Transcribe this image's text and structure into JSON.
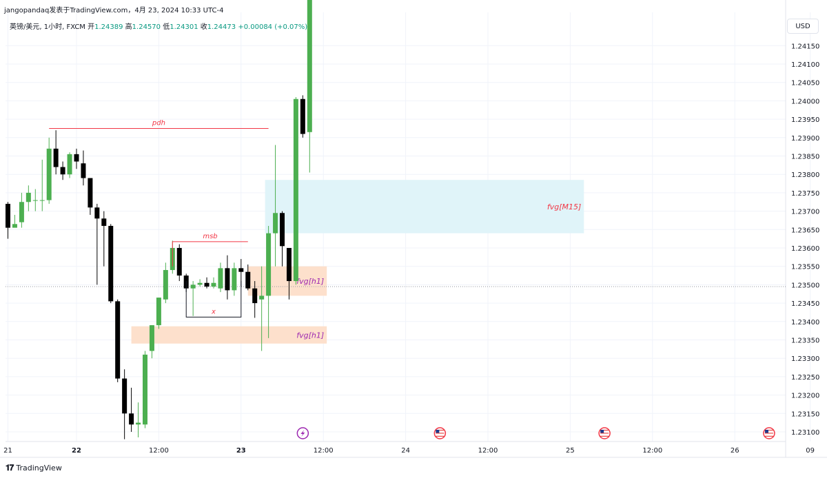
{
  "header": {
    "publisher": "jangopandaq发表于TradingView.com，4月 23, 2024 10:33 UTC-4"
  },
  "legend": {
    "symbol": "英镑/美元, 1小时, FXCM",
    "open_label": "开",
    "open": "1.24389",
    "high_label": "高",
    "high": "1.24570",
    "low_label": "低",
    "low": "1.24301",
    "close_label": "收",
    "close": "1.24473",
    "change": "+0.00084 (+0.07%)"
  },
  "currency": "USD",
  "brand": {
    "name": "TradingView"
  },
  "colors": {
    "up": "#4caf50",
    "down": "#000000",
    "grid": "#f0f3fa",
    "red_line": "#f23645",
    "fvg_m15": "#e0f4f9",
    "fvg_h1": "#fde0cc",
    "fvg_text": "#9c27b0"
  },
  "chart_data": {
    "type": "candlestick",
    "ylim": [
      1.2308,
      1.2428
    ],
    "y_ticks": [
      "1.24150",
      "1.24100",
      "1.24050",
      "1.24000",
      "1.23950",
      "1.23900",
      "1.23850",
      "1.23800",
      "1.23750",
      "1.23700",
      "1.23650",
      "1.23600",
      "1.23550",
      "1.23500",
      "1.23450",
      "1.23400",
      "1.23350",
      "1.23300",
      "1.23250",
      "1.23200",
      "1.23150",
      "1.23100"
    ],
    "x_ticks": [
      {
        "label": "21",
        "bar": 0
      },
      {
        "label": "22",
        "bar": 10
      },
      {
        "label": "12:00",
        "bar": 22
      },
      {
        "label": "23",
        "bar": 34
      },
      {
        "label": "12:00",
        "bar": 46
      },
      {
        "label": "24",
        "bar": 58
      },
      {
        "label": "12:00",
        "bar": 70
      },
      {
        "label": "25",
        "bar": 82
      },
      {
        "label": "12:00",
        "bar": 94
      },
      {
        "label": "26",
        "bar": 106
      },
      {
        "label": "09",
        "bar": 117
      }
    ],
    "candles": [
      [
        1.2372,
        1.23725,
        1.23625,
        1.23655
      ],
      [
        1.23655,
        1.2369,
        1.2366,
        1.23665
      ],
      [
        1.2367,
        1.2375,
        1.23655,
        1.23725
      ],
      [
        1.23725,
        1.2377,
        1.237,
        1.2375
      ],
      [
        1.2373,
        1.2376,
        1.237,
        1.2373
      ],
      [
        1.2373,
        1.2384,
        1.237,
        1.2373
      ],
      [
        1.2373,
        1.239,
        1.2372,
        1.2387
      ],
      [
        1.2387,
        1.2392,
        1.238,
        1.2382
      ],
      [
        1.2382,
        1.23835,
        1.23785,
        1.238
      ],
      [
        1.238,
        1.2386,
        1.2379,
        1.23855
      ],
      [
        1.23855,
        1.2387,
        1.23815,
        1.23835
      ],
      [
        1.2383,
        1.23865,
        1.2377,
        1.2379
      ],
      [
        1.2379,
        1.2379,
        1.2369,
        1.2371
      ],
      [
        1.2371,
        1.2372,
        1.235,
        1.2368
      ],
      [
        1.2368,
        1.237,
        1.2355,
        1.2366
      ],
      [
        1.2366,
        1.23665,
        1.2345,
        1.23455
      ],
      [
        1.23455,
        1.2346,
        1.23235,
        1.23245
      ],
      [
        1.23245,
        1.2327,
        1.2308,
        1.2315
      ],
      [
        1.2315,
        1.2322,
        1.231,
        1.2312
      ],
      [
        1.2312,
        1.2318,
        1.23085,
        1.23125
      ],
      [
        1.2312,
        1.2332,
        1.2311,
        1.2331
      ],
      [
        1.2332,
        1.2339,
        1.233,
        1.2339
      ],
      [
        1.2339,
        1.23465,
        1.2338,
        1.23465
      ],
      [
        1.2346,
        1.2356,
        1.2345,
        1.2354
      ],
      [
        1.2354,
        1.2362,
        1.2353,
        1.236
      ],
      [
        1.236,
        1.2361,
        1.2351,
        1.23525
      ],
      [
        1.23525,
        1.2353,
        1.2348,
        1.2349
      ],
      [
        1.2349,
        1.2351,
        1.23415,
        1.235
      ],
      [
        1.235,
        1.23515,
        1.23495,
        1.23505
      ],
      [
        1.23505,
        1.2352,
        1.2349,
        1.23495
      ],
      [
        1.23495,
        1.2352,
        1.2349,
        1.23505
      ],
      [
        1.2349,
        1.2356,
        1.2348,
        1.23545
      ],
      [
        1.23545,
        1.2358,
        1.2346,
        1.23485
      ],
      [
        1.23485,
        1.2356,
        1.2347,
        1.23545
      ],
      [
        1.23545,
        1.2357,
        1.23495,
        1.23535
      ],
      [
        1.23535,
        1.23555,
        1.23485,
        1.2349
      ],
      [
        1.2349,
        1.2351,
        1.2341,
        1.2345
      ],
      [
        1.2346,
        1.2355,
        1.2332,
        1.2347
      ],
      [
        1.2347,
        1.2366,
        1.23355,
        1.2364
      ],
      [
        1.2364,
        1.2388,
        1.2355,
        1.23695
      ],
      [
        1.23695,
        1.237,
        1.2355,
        1.23605
      ],
      [
        1.236,
        1.236,
        1.2346,
        1.2351
      ],
      [
        1.2351,
        1.2401,
        1.235,
        1.24005
      ],
      [
        1.24005,
        1.24015,
        1.239,
        1.2391
      ],
      [
        1.23915,
        1.2429,
        1.23805,
        1.2429
      ]
    ],
    "annotations": [
      {
        "type": "line",
        "label": "pdh",
        "price": 1.23925,
        "from_bar": 6,
        "to_bar": 38
      },
      {
        "type": "bracket",
        "label": "msb",
        "price": 1.23617,
        "low": 1.2355,
        "from_bar": 24,
        "to_bar": 35
      },
      {
        "type": "bracket",
        "label": "x",
        "price": 1.23412,
        "high": 1.2351,
        "from_bar": 26,
        "to_bar": 34
      },
      {
        "type": "zone",
        "label": "fvg[M15]",
        "top": 1.23785,
        "bottom": 1.2364,
        "from_bar": 37.5,
        "to_bar": 84
      },
      {
        "type": "zone",
        "label": "fvg[h1]",
        "top": 1.2355,
        "bottom": 1.2347,
        "from_bar": 35,
        "to_bar": 46.5
      },
      {
        "type": "zone",
        "label": "fvg[h1]",
        "top": 1.23387,
        "bottom": 1.2334,
        "from_bar": 18,
        "to_bar": 46.5
      }
    ],
    "last_price_line": 1.23495,
    "event_markers": [
      {
        "icon": "lightning-icon",
        "bar": 43
      },
      {
        "icon": "us-flag-icon",
        "bar": 63
      },
      {
        "icon": "us-flag-icon",
        "bar": 87
      },
      {
        "icon": "us-flag-icon",
        "bar": 111
      }
    ]
  }
}
